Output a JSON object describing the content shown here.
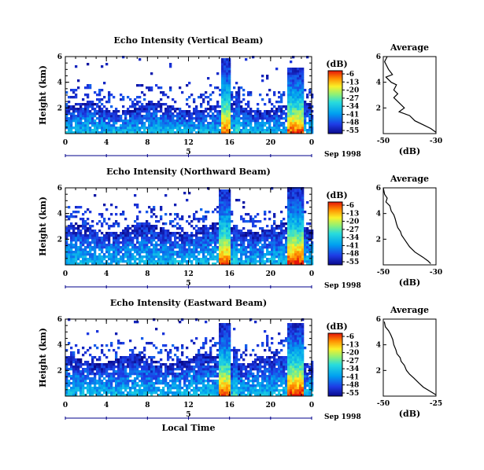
{
  "figure": {
    "xlabel": "Local Time",
    "date_label": "Sep 1998",
    "day_label": "5"
  },
  "chart_data": [
    {
      "type": "heatmap",
      "title": "Echo Intensity (Vertical Beam)",
      "ylabel": "Height (km)",
      "x_ticks": [
        "0",
        "4",
        "8",
        "12",
        "16",
        "20",
        "0"
      ],
      "xlim": [
        0,
        24
      ],
      "y_ticks": [
        "2",
        "4",
        "6"
      ],
      "ylim": [
        0,
        6
      ],
      "colorbar": {
        "unit": "(dB)",
        "ticks": [
          "-6",
          "-13",
          "-20",
          "-27",
          "-34",
          "-41",
          "-48",
          "-55"
        ],
        "range": [
          -55,
          -6
        ]
      },
      "layer_top_km": 2.0,
      "columns": [
        {
          "from": 15.0,
          "to": 15.9,
          "top": 5.8,
          "max_db": -10
        },
        {
          "from": 16.5,
          "to": 16.8,
          "top": 3.2,
          "max_db": -30
        },
        {
          "from": 21.6,
          "to": 23.2,
          "top": 5.1,
          "max_db": -8
        }
      ]
    },
    {
      "type": "heatmap",
      "title": "Echo Intensity (Northward Beam)",
      "ylabel": "Height (km)",
      "x_ticks": [
        "0",
        "4",
        "8",
        "12",
        "16",
        "20",
        "0"
      ],
      "xlim": [
        0,
        24
      ],
      "y_ticks": [
        "2",
        "4",
        "6"
      ],
      "ylim": [
        0,
        6
      ],
      "colorbar": {
        "unit": "(dB)",
        "ticks": [
          "-6",
          "-13",
          "-20",
          "-27",
          "-34",
          "-41",
          "-48",
          "-55"
        ],
        "range": [
          -55,
          -6
        ]
      },
      "layer_top_km": 2.8,
      "columns": [
        {
          "from": 14.8,
          "to": 15.9,
          "top": 5.8,
          "max_db": -8
        },
        {
          "from": 16.3,
          "to": 16.7,
          "top": 3.0,
          "max_db": -30
        },
        {
          "from": 21.4,
          "to": 23.2,
          "top": 5.9,
          "max_db": -6
        }
      ]
    },
    {
      "type": "heatmap",
      "title": "Echo Intensity (Eastward Beam)",
      "ylabel": "Height (km)",
      "x_ticks": [
        "0",
        "4",
        "8",
        "12",
        "16",
        "20",
        "0"
      ],
      "xlim": [
        0,
        24
      ],
      "y_ticks": [
        "2",
        "4",
        "6"
      ],
      "ylim": [
        0,
        6
      ],
      "colorbar": {
        "unit": "(dB)",
        "ticks": [
          "-6",
          "-13",
          "-20",
          "-27",
          "-34",
          "-41",
          "-48",
          "-55"
        ],
        "range": [
          -55,
          -6
        ]
      },
      "layer_top_km": 2.8,
      "columns": [
        {
          "from": 14.8,
          "to": 15.9,
          "top": 5.6,
          "max_db": -8
        },
        {
          "from": 16.3,
          "to": 16.7,
          "top": 3.5,
          "max_db": -30
        },
        {
          "from": 21.4,
          "to": 23.2,
          "top": 5.6,
          "max_db": -6
        }
      ]
    },
    {
      "type": "line",
      "title": "Average",
      "xlabel": "(dB)",
      "x_ticks": [
        "-50",
        "-30"
      ],
      "xlim": [
        -50,
        -30
      ],
      "y_ticks": [
        "2",
        "4",
        "6"
      ],
      "ylim": [
        0,
        6
      ],
      "x": [
        -48.5,
        -49.5,
        -48,
        -46.5,
        -49,
        -47,
        -45,
        -46,
        -44.5,
        -46,
        -44,
        -42,
        -44,
        -40,
        -38,
        -35,
        -32,
        -30
      ],
      "y": [
        6.0,
        5.6,
        5.0,
        4.6,
        4.4,
        4.0,
        3.8,
        3.4,
        3.1,
        2.8,
        2.4,
        2.0,
        1.7,
        1.4,
        1.0,
        0.7,
        0.4,
        0.1
      ]
    },
    {
      "type": "line",
      "title": "Average",
      "xlabel": "(dB)",
      "x_ticks": [
        "-50",
        "-30"
      ],
      "xlim": [
        -50,
        -30
      ],
      "y_ticks": [
        "2",
        "4",
        "6"
      ],
      "ylim": [
        0,
        6
      ],
      "x": [
        -50,
        -49.5,
        -48.5,
        -49,
        -47.5,
        -47,
        -46,
        -45.5,
        -45,
        -44.5,
        -43.5,
        -43,
        -42,
        -41,
        -40,
        -38,
        -35,
        -33,
        -32
      ],
      "y": [
        6.0,
        5.5,
        5.2,
        4.9,
        4.6,
        4.2,
        3.9,
        3.6,
        3.2,
        2.9,
        2.6,
        2.3,
        2.0,
        1.7,
        1.4,
        1.0,
        0.6,
        0.3,
        0.1
      ]
    },
    {
      "type": "line",
      "title": "Average",
      "xlabel": "(dB)",
      "x_ticks": [
        "-50",
        "-25"
      ],
      "xlim": [
        -50,
        -25
      ],
      "y_ticks": [
        "2",
        "4",
        "6"
      ],
      "ylim": [
        0,
        6
      ],
      "x": [
        -49.5,
        -49,
        -47.5,
        -46.5,
        -45.5,
        -45,
        -44,
        -43.5,
        -42,
        -41.5,
        -40,
        -39,
        -37.5,
        -35.5,
        -33,
        -31,
        -28,
        -25
      ],
      "y": [
        5.8,
        5.4,
        5.1,
        4.8,
        4.4,
        4.0,
        3.6,
        3.3,
        3.0,
        2.7,
        2.4,
        2.0,
        1.7,
        1.4,
        1.0,
        0.7,
        0.4,
        0.1
      ]
    }
  ]
}
